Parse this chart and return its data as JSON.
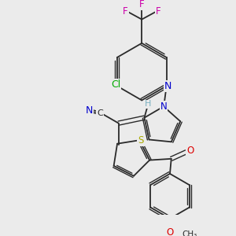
{
  "background_color": "#ebebeb",
  "bond_color": "#2a2a2a",
  "figsize": [
    3.0,
    3.0
  ],
  "dpi": 100,
  "atom_bg": "#ebebeb",
  "colors": {
    "N": "#0000cc",
    "Cl": "#00aa00",
    "F": "#cc00aa",
    "S": "#aaaa00",
    "O": "#dd0000",
    "H": "#7ab0c0",
    "C": "#2a2a2a"
  }
}
